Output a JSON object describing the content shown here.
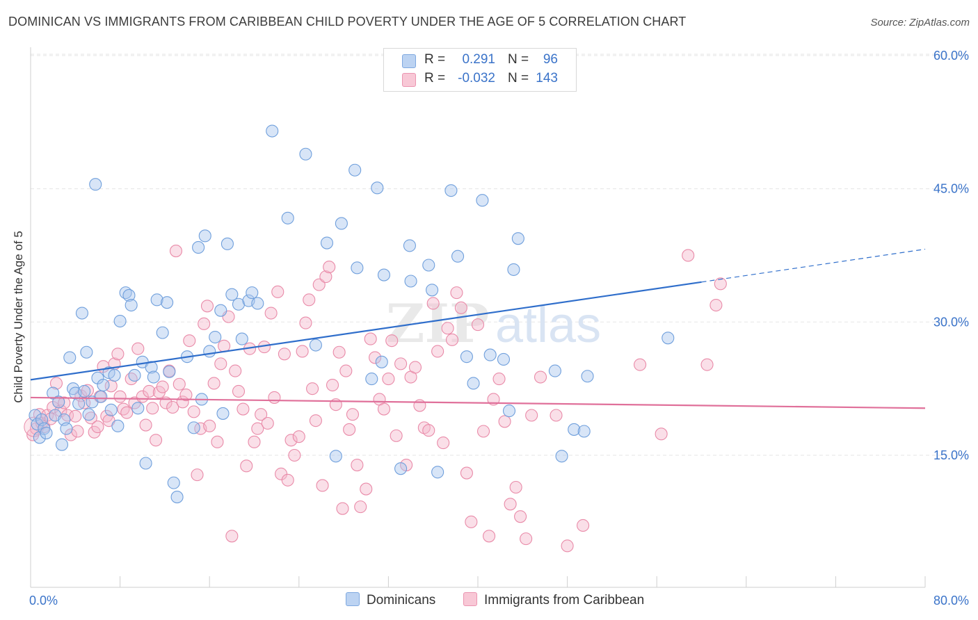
{
  "title": "DOMINICAN VS IMMIGRANTS FROM CARIBBEAN CHILD POVERTY UNDER THE AGE OF 5 CORRELATION CHART",
  "source": "Source: ZipAtlas.com",
  "watermark": "ZIPatlas",
  "legend_top": {
    "rows": [
      {
        "r_label": "R =",
        "r_value": "0.291",
        "n_label": "N =",
        "n_value": "96"
      },
      {
        "r_label": "R =",
        "r_value": "-0.032",
        "n_label": "N =",
        "n_value": "143"
      }
    ]
  },
  "colors": {
    "blue_fill": "#a9c5ee",
    "blue_stroke": "#6f9fdc",
    "blue_line": "#2f6ecb",
    "pink_fill": "#f5b9cb",
    "pink_stroke": "#e98aa8",
    "pink_line": "#e0709a",
    "axis_text": "#3a73c9",
    "grid": "#e5e5e5"
  },
  "chart_data": {
    "type": "scatter",
    "title": "DOMINICAN VS IMMIGRANTS FROM CARIBBEAN CHILD POVERTY UNDER THE AGE OF 5 CORRELATION CHART",
    "xlabel": "",
    "ylabel": "Child Poverty Under the Age of 5",
    "xlim": [
      0,
      80
    ],
    "ylim": [
      0,
      63
    ],
    "x_tick_labels": [
      "0.0%",
      "80.0%"
    ],
    "y_ticks": [
      15,
      30,
      45,
      60
    ],
    "y_tick_labels": [
      "15.0%",
      "30.0%",
      "45.0%",
      "60.0%"
    ],
    "grid": true,
    "legend_position": "top-center",
    "series": [
      {
        "name": "Dominicans",
        "color": "#a9c5ee",
        "trend": {
          "x": [
            0,
            60
          ],
          "y": [
            23.5,
            34.5
          ],
          "dashed_to": [
            80,
            38.2
          ]
        },
        "points": [
          [
            0.4,
            19.5
          ],
          [
            0.6,
            18.5
          ],
          [
            0.8,
            17
          ],
          [
            1.0,
            19
          ],
          [
            1.2,
            18
          ],
          [
            1.4,
            17.5
          ],
          [
            2.0,
            22
          ],
          [
            2.2,
            19.5
          ],
          [
            2.5,
            21
          ],
          [
            2.8,
            16.2
          ],
          [
            3.0,
            19
          ],
          [
            3.2,
            18
          ],
          [
            3.5,
            26
          ],
          [
            3.8,
            22.5
          ],
          [
            4.0,
            22
          ],
          [
            4.3,
            20.8
          ],
          [
            4.6,
            31
          ],
          [
            4.8,
            22.2
          ],
          [
            5.0,
            26.6
          ],
          [
            5.2,
            19.6
          ],
          [
            5.5,
            21
          ],
          [
            5.8,
            45.5
          ],
          [
            6.0,
            23.7
          ],
          [
            6.3,
            21.6
          ],
          [
            6.5,
            22.9
          ],
          [
            7.0,
            24.3
          ],
          [
            7.2,
            20.1
          ],
          [
            7.5,
            24
          ],
          [
            7.8,
            18.3
          ],
          [
            8.0,
            30.1
          ],
          [
            8.5,
            33.3
          ],
          [
            8.8,
            33
          ],
          [
            9.0,
            31.9
          ],
          [
            9.3,
            24
          ],
          [
            9.6,
            20.3
          ],
          [
            10.0,
            25.5
          ],
          [
            10.3,
            14.1
          ],
          [
            10.8,
            24.9
          ],
          [
            11.0,
            23.8
          ],
          [
            11.3,
            32.5
          ],
          [
            11.8,
            28.8
          ],
          [
            12.2,
            32.2
          ],
          [
            12.4,
            24.4
          ],
          [
            12.8,
            11.9
          ],
          [
            13.1,
            10.3
          ],
          [
            14.0,
            26.1
          ],
          [
            14.6,
            18.1
          ],
          [
            15.0,
            38.4
          ],
          [
            15.3,
            21.3
          ],
          [
            15.6,
            39.7
          ],
          [
            16.0,
            26.7
          ],
          [
            16.5,
            28.3
          ],
          [
            17.0,
            31.3
          ],
          [
            17.2,
            19.7
          ],
          [
            17.6,
            38.8
          ],
          [
            18.0,
            33.1
          ],
          [
            18.6,
            32
          ],
          [
            18.9,
            28.1
          ],
          [
            19.5,
            32.4
          ],
          [
            19.8,
            33.3
          ],
          [
            20.3,
            32.1
          ],
          [
            21.6,
            51.5
          ],
          [
            23.0,
            41.7
          ],
          [
            24.6,
            48.9
          ],
          [
            25.5,
            27.4
          ],
          [
            26.5,
            38.9
          ],
          [
            27.3,
            14.9
          ],
          [
            27.8,
            41.1
          ],
          [
            29.0,
            47.1
          ],
          [
            29.2,
            36.1
          ],
          [
            30.5,
            23.6
          ],
          [
            31.0,
            45.1
          ],
          [
            31.4,
            25.5
          ],
          [
            31.6,
            35.3
          ],
          [
            33.1,
            13.5
          ],
          [
            33.9,
            38.6
          ],
          [
            34.0,
            34.6
          ],
          [
            35.6,
            36.4
          ],
          [
            35.9,
            33.6
          ],
          [
            36.4,
            13.1
          ],
          [
            37.6,
            44.8
          ],
          [
            38.2,
            37.4
          ],
          [
            39.0,
            26.1
          ],
          [
            39.6,
            23.1
          ],
          [
            40.4,
            43.7
          ],
          [
            41.1,
            26.3
          ],
          [
            42.3,
            25.8
          ],
          [
            42.8,
            20.0
          ],
          [
            43.2,
            35.9
          ],
          [
            43.6,
            39.4
          ],
          [
            46.9,
            24.5
          ],
          [
            47.5,
            14.9
          ],
          [
            48.6,
            17.9
          ],
          [
            49.5,
            17.7
          ],
          [
            49.8,
            23.9
          ],
          [
            57.0,
            28.2
          ]
        ]
      },
      {
        "name": "Immigrants from Caribbean",
        "color": "#f5b9cb",
        "trend": {
          "x": [
            0,
            80
          ],
          "y": [
            21.5,
            20.3
          ]
        },
        "points": [
          [
            0.2,
            17.3
          ],
          [
            0.5,
            18
          ],
          [
            0.8,
            19.6
          ],
          [
            1.0,
            18.6
          ],
          [
            1.2,
            18.2
          ],
          [
            1.5,
            19.5
          ],
          [
            1.8,
            19.1
          ],
          [
            2.0,
            20.4
          ],
          [
            2.3,
            23.1
          ],
          [
            2.5,
            21
          ],
          [
            2.7,
            20
          ],
          [
            3.0,
            20.9
          ],
          [
            3.3,
            19.5
          ],
          [
            3.6,
            17.3
          ],
          [
            4.0,
            19.4
          ],
          [
            4.2,
            17.7
          ],
          [
            4.5,
            21.7
          ],
          [
            4.8,
            20.9
          ],
          [
            5.1,
            22.3
          ],
          [
            5.4,
            19.2
          ],
          [
            5.7,
            17.6
          ],
          [
            6.0,
            18.2
          ],
          [
            6.2,
            21.6
          ],
          [
            6.5,
            25
          ],
          [
            6.8,
            19.4
          ],
          [
            7.0,
            18.9
          ],
          [
            7.2,
            22.8
          ],
          [
            7.5,
            25.3
          ],
          [
            7.8,
            26.4
          ],
          [
            8.0,
            21.6
          ],
          [
            8.3,
            20.2
          ],
          [
            8.6,
            19.8
          ],
          [
            9.0,
            23.6
          ],
          [
            9.3,
            20.9
          ],
          [
            9.6,
            27
          ],
          [
            10.0,
            21.6
          ],
          [
            10.3,
            18.4
          ],
          [
            10.6,
            22.2
          ],
          [
            10.9,
            20.3
          ],
          [
            11.2,
            16.7
          ],
          [
            11.5,
            22.1
          ],
          [
            11.8,
            22.7
          ],
          [
            12.1,
            20.9
          ],
          [
            12.4,
            24.5
          ],
          [
            12.7,
            20.4
          ],
          [
            13.0,
            38
          ],
          [
            13.3,
            23
          ],
          [
            13.6,
            21
          ],
          [
            13.9,
            21.8
          ],
          [
            14.2,
            27.9
          ],
          [
            14.6,
            19.9
          ],
          [
            14.9,
            12.8
          ],
          [
            15.2,
            18
          ],
          [
            15.5,
            29.8
          ],
          [
            15.8,
            31.8
          ],
          [
            16.0,
            18.3
          ],
          [
            16.4,
            23.1
          ],
          [
            16.7,
            16.5
          ],
          [
            17.0,
            25.3
          ],
          [
            17.3,
            27.3
          ],
          [
            17.7,
            30.6
          ],
          [
            18.0,
            5.9
          ],
          [
            18.3,
            24.5
          ],
          [
            18.6,
            22.2
          ],
          [
            19.0,
            20.2
          ],
          [
            19.3,
            13.8
          ],
          [
            19.6,
            27
          ],
          [
            20.0,
            16.5
          ],
          [
            20.3,
            18
          ],
          [
            20.6,
            19.6
          ],
          [
            20.9,
            27.2
          ],
          [
            21.2,
            18.6
          ],
          [
            21.5,
            31
          ],
          [
            21.8,
            21.5
          ],
          [
            22.1,
            33.4
          ],
          [
            22.4,
            12.9
          ],
          [
            22.7,
            26.4
          ],
          [
            23.0,
            12.2
          ],
          [
            23.3,
            16.7
          ],
          [
            23.6,
            15.0
          ],
          [
            24.0,
            17.1
          ],
          [
            24.3,
            26.7
          ],
          [
            24.6,
            29.9
          ],
          [
            24.9,
            32.5
          ],
          [
            25.2,
            22.5
          ],
          [
            25.5,
            18.9
          ],
          [
            25.8,
            34.2
          ],
          [
            26.1,
            11.6
          ],
          [
            26.4,
            35.1
          ],
          [
            26.7,
            36.2
          ],
          [
            27.0,
            22.9
          ],
          [
            27.3,
            20.7
          ],
          [
            27.6,
            26.6
          ],
          [
            27.9,
            9.0
          ],
          [
            28.2,
            24.5
          ],
          [
            28.5,
            17.9
          ],
          [
            28.8,
            19.6
          ],
          [
            29.2,
            13.9
          ],
          [
            29.5,
            9.2
          ],
          [
            30.0,
            11.2
          ],
          [
            30.4,
            28.1
          ],
          [
            30.8,
            26
          ],
          [
            31.2,
            21.3
          ],
          [
            31.6,
            20.2
          ],
          [
            32.0,
            23.6
          ],
          [
            32.3,
            27.9
          ],
          [
            32.7,
            17.2
          ],
          [
            33.1,
            25.3
          ],
          [
            33.6,
            13.9
          ],
          [
            34.0,
            23.8
          ],
          [
            34.4,
            24.9
          ],
          [
            34.8,
            20.6
          ],
          [
            35.2,
            18.1
          ],
          [
            35.6,
            17.8
          ],
          [
            36.0,
            32.1
          ],
          [
            36.4,
            26.7
          ],
          [
            36.9,
            16.4
          ],
          [
            37.3,
            29.3
          ],
          [
            37.7,
            28
          ],
          [
            38.1,
            33.3
          ],
          [
            38.5,
            31.6
          ],
          [
            39.0,
            13.0
          ],
          [
            39.4,
            7.5
          ],
          [
            40.0,
            29.7
          ],
          [
            40.5,
            17.7
          ],
          [
            41.0,
            5.9
          ],
          [
            41.4,
            21.3
          ],
          [
            41.9,
            23.6
          ],
          [
            42.4,
            18.8
          ],
          [
            42.9,
            9.5
          ],
          [
            43.4,
            11.4
          ],
          [
            43.8,
            8.1
          ],
          [
            44.3,
            5.6
          ],
          [
            44.8,
            19.5
          ],
          [
            45.6,
            23.8
          ],
          [
            47.0,
            19.5
          ],
          [
            48.0,
            4.8
          ],
          [
            49.4,
            7.1
          ],
          [
            54.5,
            25.2
          ],
          [
            56.4,
            17.4
          ],
          [
            58.8,
            37.5
          ],
          [
            60.5,
            25.2
          ],
          [
            61.3,
            31.9
          ],
          [
            61.7,
            34.3
          ]
        ]
      }
    ]
  },
  "legend_bottom": {
    "items": [
      "Dominicans",
      "Immigrants from Caribbean"
    ]
  }
}
